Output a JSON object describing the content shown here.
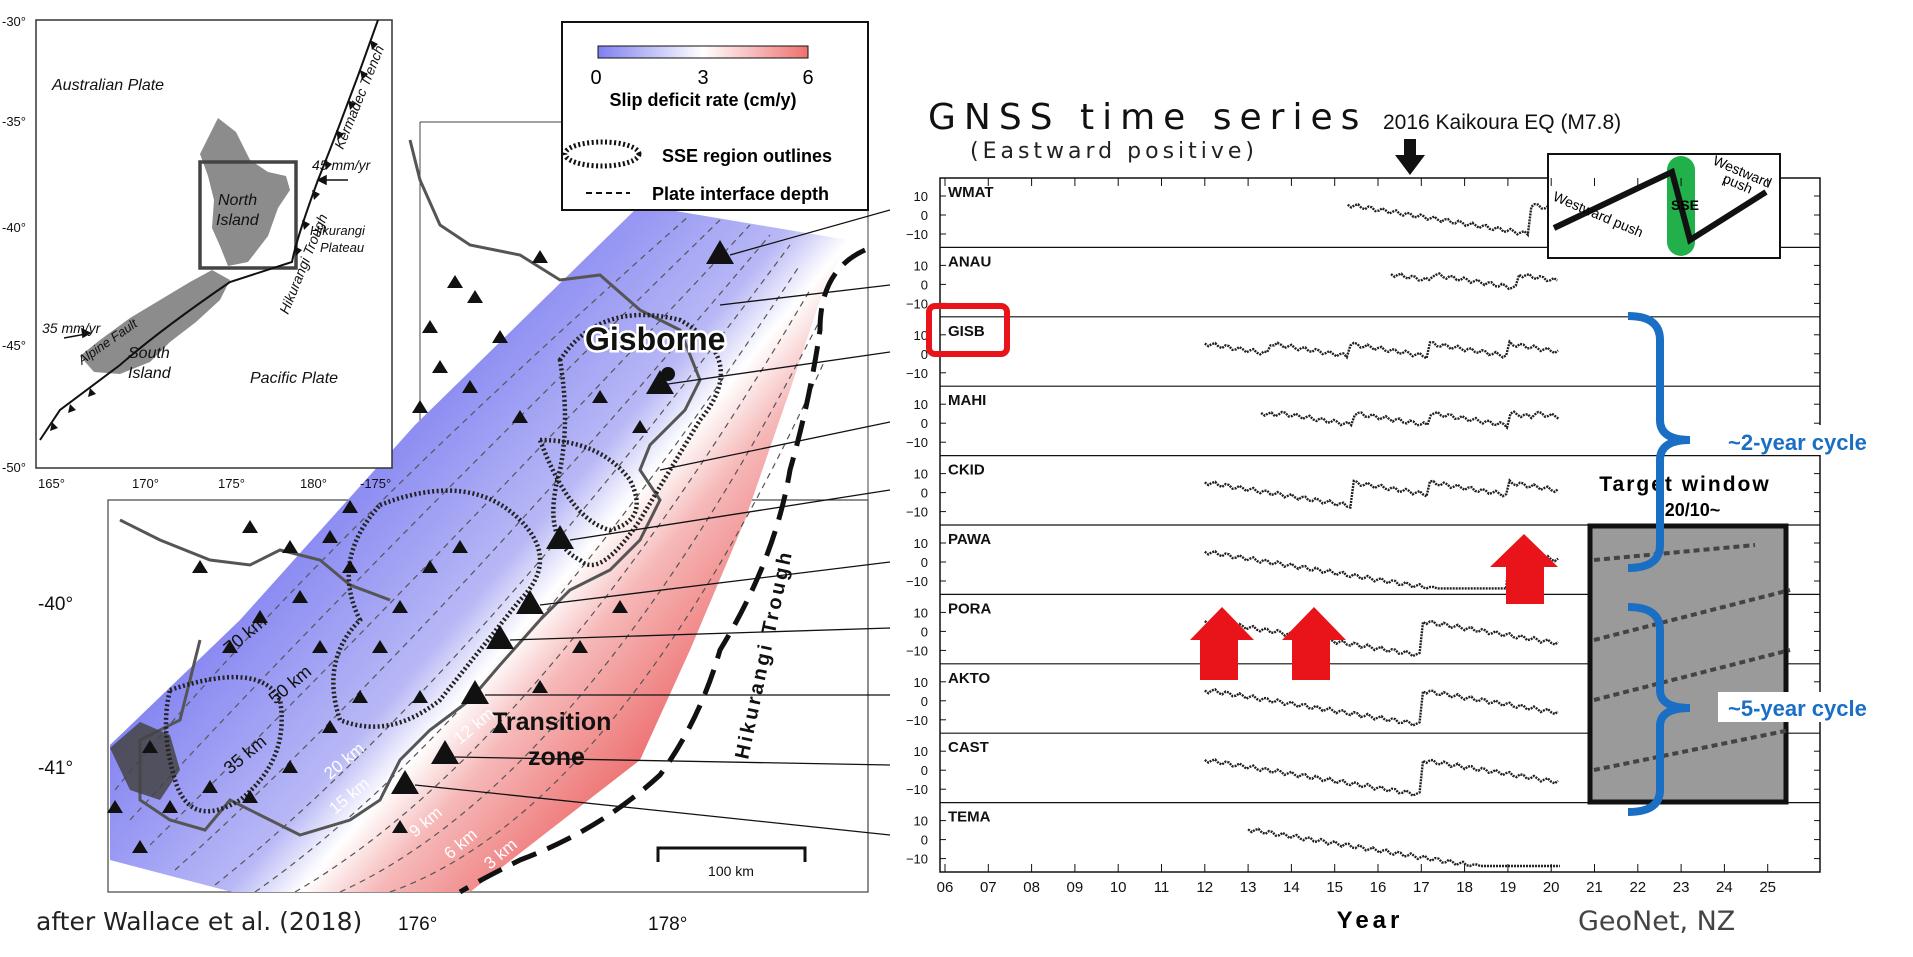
{
  "inset": {
    "lat_ticks": [
      "-30°",
      "-35°",
      "-40°",
      "-45°",
      "-50°"
    ],
    "lon_ticks": [
      "165°",
      "170°",
      "175°",
      "180°",
      "-175°"
    ],
    "labels": {
      "australian_plate": "Australian Plate",
      "pacific_plate": "Pacific Plate",
      "north_island": [
        "North",
        "Island"
      ],
      "south_island": [
        "South",
        "Island"
      ],
      "kermadec": "Kermadec Trench",
      "hikurangi_trough": "Hikurangi Trough",
      "hikurangi_plateau": [
        "Hikurangi",
        "Plateau"
      ],
      "alpine_fault": "Alpine Fault",
      "rate_east": "45 mm/yr",
      "rate_west": "35 mm/yr"
    }
  },
  "legend": {
    "min": "0",
    "mid": "3",
    "max": "6",
    "colorbar_label": "Slip deficit rate (cm/y)",
    "sse_label": "SSE region outlines",
    "depth_label": "Plate interface depth",
    "colors": {
      "low": "#8080f0",
      "mid": "#ffffff",
      "high": "#f07070"
    }
  },
  "map": {
    "gisborne": "Gisborne",
    "transition": [
      "Transition",
      "zone"
    ],
    "trough": "Hikurangi Trough",
    "depths": [
      "70 km",
      "50 km",
      "35 km",
      "20 km",
      "15 km",
      "12 km",
      "9 km",
      "6 km",
      "3 km"
    ],
    "scale": "100 km",
    "lat_ticks": [
      "-40°",
      "-41°"
    ],
    "lon_ticks": [
      "176°",
      "178°"
    ],
    "credit": "after Wallace et al. (2018)"
  },
  "series_panel": {
    "title": "GNSS time series",
    "subtitle": "(Eastward positive)",
    "eq_label": "2016 Kaikoura EQ (M7.8)",
    "stations": [
      "WMAT",
      "ANAU",
      "GISB",
      "MAHI",
      "CKID",
      "PAWA",
      "PORA",
      "AKTO",
      "CAST",
      "TEMA"
    ],
    "y_ticks": [
      "10",
      "0",
      "−10"
    ],
    "x_ticks": [
      "06",
      "07",
      "08",
      "09",
      "10",
      "11",
      "12",
      "13",
      "14",
      "15",
      "16",
      "17",
      "18",
      "19",
      "20",
      "21",
      "22",
      "23",
      "24",
      "25"
    ],
    "xlabel": "Year",
    "source": "GeoNet, NZ",
    "target_window": "Target window",
    "target_date": "’20/10~",
    "cycle_2": "~2-year cycle",
    "cycle_5": "~5-year cycle",
    "inset_labels": {
      "west1": "Westward push",
      "west2": [
        "Westward",
        "push"
      ],
      "sse": "SSE"
    },
    "colors": {
      "sse": "#22b04a",
      "arrow": "#e8141a",
      "brace": "#1a6fc4",
      "box": "#e8141a"
    }
  }
}
